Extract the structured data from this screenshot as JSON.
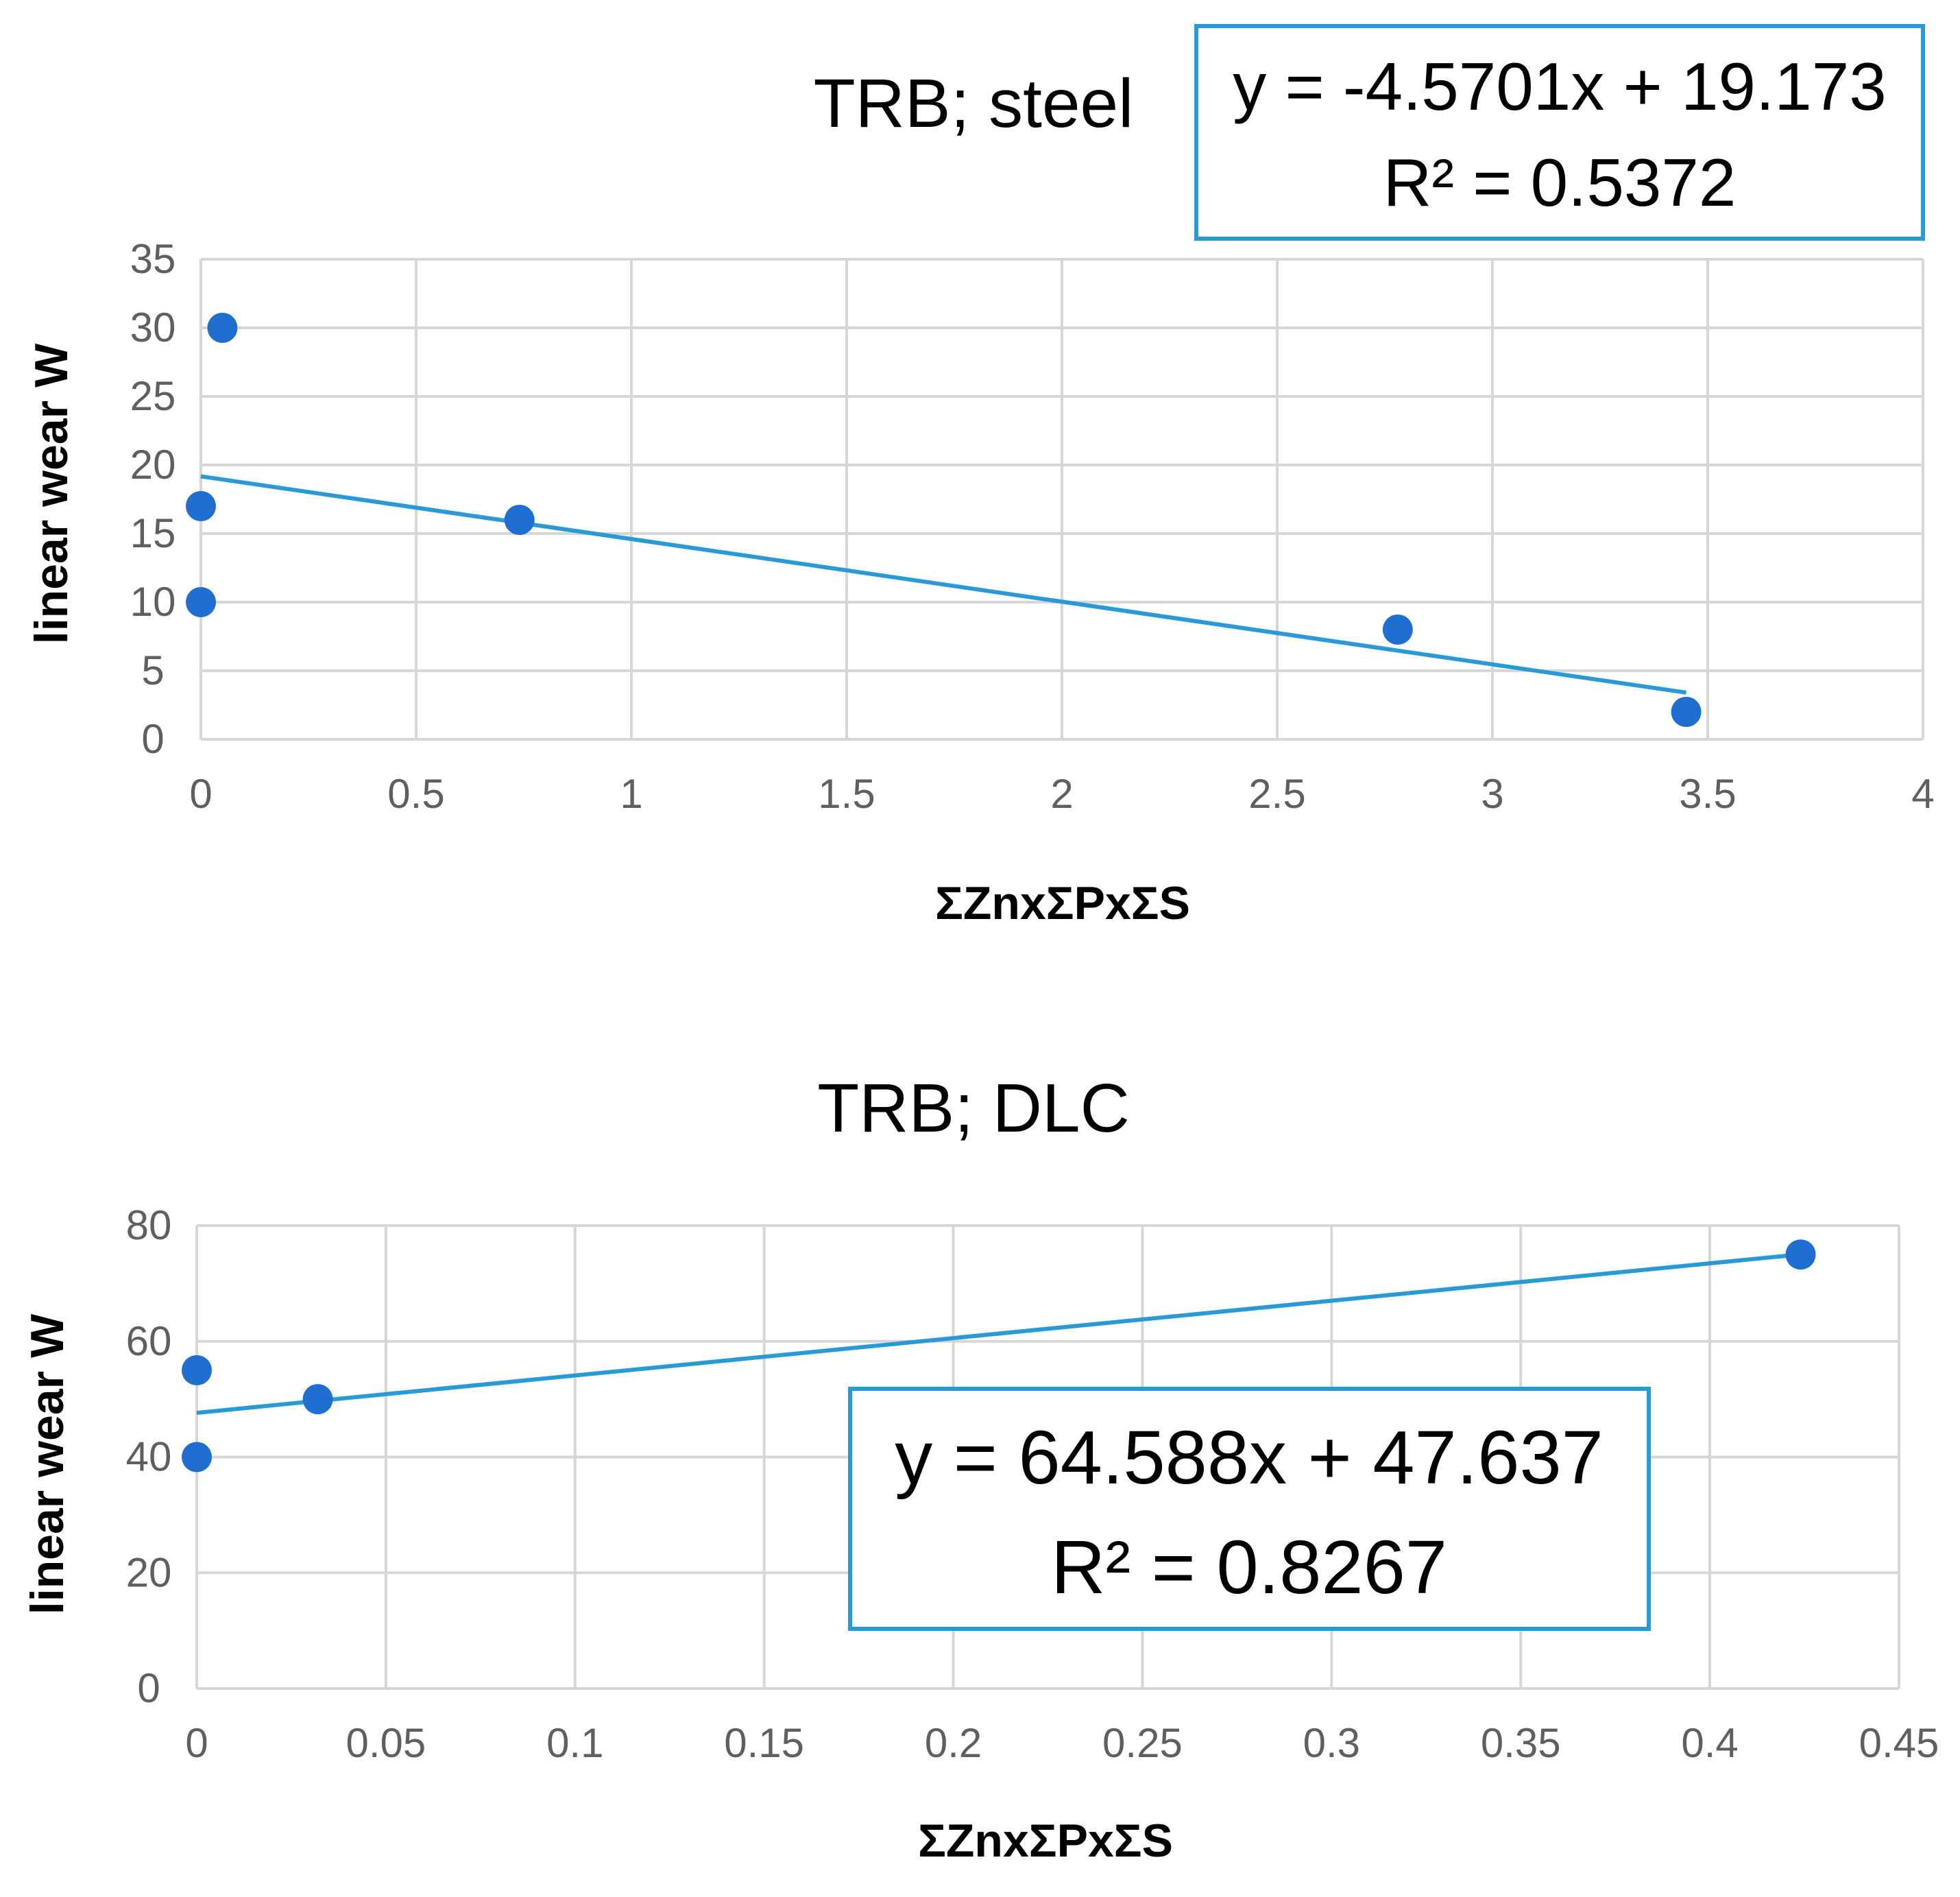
{
  "colors": {
    "point": "#1f6fd1",
    "trendline": "#2a9ad6",
    "grid": "#d6d6d6",
    "axis_text": "#5f5f5f",
    "box_border": "#2a9ad6"
  },
  "chart_data": [
    {
      "type": "scatter",
      "title": "TRB; steel",
      "xlabel": "ΣZnxΣPxΣS",
      "ylabel": "linear wear W",
      "xlim": [
        0,
        4
      ],
      "ylim": [
        0,
        35
      ],
      "xticks": [
        0,
        0.5,
        1,
        1.5,
        2,
        2.5,
        3,
        3.5,
        4
      ],
      "xtick_labels": [
        "0",
        "0.5",
        "1",
        "1.5",
        "2",
        "2.5",
        "3",
        "3.5",
        "4"
      ],
      "yticks": [
        0,
        5,
        10,
        15,
        20,
        25,
        30,
        35
      ],
      "ytick_labels": [
        "0",
        "5",
        "10",
        "15",
        "20",
        "25",
        "30",
        "35"
      ],
      "grid": true,
      "points": [
        {
          "x": 0.05,
          "y": 30
        },
        {
          "x": 0.0,
          "y": 17
        },
        {
          "x": 0.0,
          "y": 10
        },
        {
          "x": 0.74,
          "y": 16
        },
        {
          "x": 2.78,
          "y": 8
        },
        {
          "x": 3.45,
          "y": 2
        }
      ],
      "trendline": {
        "slope": -4.5701,
        "intercept": 19.173,
        "x_range": [
          0,
          3.45
        ]
      },
      "equation": {
        "line1": "y = -4.5701x + 19.173",
        "line2": "R² = 0.5372"
      }
    },
    {
      "type": "scatter",
      "title": "TRB; DLC",
      "xlabel": "ΣZnxΣPxΣS",
      "ylabel": "linear wear W",
      "xlim": [
        0,
        0.45
      ],
      "ylim": [
        0,
        80
      ],
      "xticks": [
        0,
        0.05,
        0.1,
        0.15,
        0.2,
        0.25,
        0.3,
        0.35,
        0.4,
        0.45
      ],
      "xtick_labels": [
        "0",
        "0.05",
        "0.1",
        "0.15",
        "0.2",
        "0.25",
        "0.3",
        "0.35",
        "0.4",
        "0.45"
      ],
      "yticks": [
        0,
        20,
        40,
        60,
        80
      ],
      "ytick_labels": [
        "0",
        "20",
        "40",
        "60",
        "80"
      ],
      "grid": true,
      "points": [
        {
          "x": 0.0,
          "y": 55
        },
        {
          "x": 0.0,
          "y": 40
        },
        {
          "x": 0.032,
          "y": 50
        },
        {
          "x": 0.424,
          "y": 75
        }
      ],
      "trendline": {
        "slope": 64.588,
        "intercept": 47.637,
        "x_range": [
          0,
          0.424
        ]
      },
      "equation": {
        "line1": "y = 64.588x + 47.637",
        "line2": "R² = 0.8267"
      }
    }
  ]
}
